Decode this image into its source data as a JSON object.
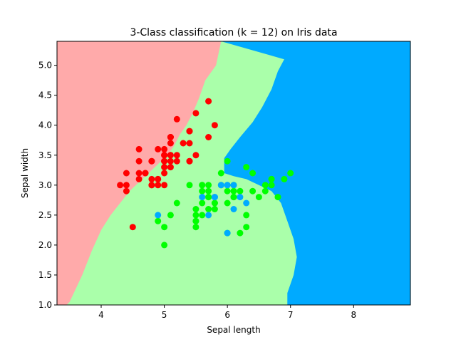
{
  "chart_data": {
    "type": "scatter",
    "title": "3-Class classification (k = 12) on Iris data",
    "xlabel": "Sepal length",
    "ylabel": "Sepal width",
    "xlim": [
      3.3,
      8.9
    ],
    "ylim": [
      1.0,
      5.4
    ],
    "xticks": [
      "4",
      "5",
      "6",
      "7",
      "8"
    ],
    "yticks": [
      "1.0",
      "1.5",
      "2.0",
      "2.5",
      "3.0",
      "3.5",
      "4.0",
      "4.5",
      "5.0"
    ],
    "grid": false,
    "colors": {
      "class_0_region": "#ffaaaa",
      "class_1_region": "#aaffaa",
      "class_2_region": "#00aaff",
      "class_0_point": "#ff0000",
      "class_1_point": "#00ff00",
      "class_2_point": "#00aaff"
    },
    "decision_regions": [
      {
        "class": 0,
        "points": [
          [
            3.3,
            5.4
          ],
          [
            5.9,
            5.4
          ],
          [
            5.82,
            5.0
          ],
          [
            5.65,
            4.75
          ],
          [
            5.55,
            4.45
          ],
          [
            5.45,
            4.2
          ],
          [
            5.35,
            4.0
          ],
          [
            5.25,
            3.85
          ],
          [
            5.15,
            3.65
          ],
          [
            5.05,
            3.5
          ],
          [
            4.95,
            3.4
          ],
          [
            4.85,
            3.3
          ],
          [
            4.75,
            3.2
          ],
          [
            4.6,
            3.05
          ],
          [
            4.45,
            2.9
          ],
          [
            4.3,
            2.7
          ],
          [
            4.15,
            2.5
          ],
          [
            4.0,
            2.25
          ],
          [
            3.85,
            1.9
          ],
          [
            3.7,
            1.5
          ],
          [
            3.5,
            1.05
          ],
          [
            3.45,
            1.0
          ],
          [
            3.3,
            1.0
          ]
        ]
      },
      {
        "class": 2,
        "points": [
          [
            5.9,
            5.4
          ],
          [
            8.9,
            5.4
          ],
          [
            8.9,
            1.0
          ],
          [
            6.95,
            1.0
          ],
          [
            6.95,
            1.2
          ],
          [
            7.05,
            1.5
          ],
          [
            7.1,
            1.8
          ],
          [
            7.05,
            2.1
          ],
          [
            6.95,
            2.4
          ],
          [
            6.85,
            2.7
          ],
          [
            6.7,
            2.9
          ],
          [
            6.5,
            3.0
          ],
          [
            6.3,
            3.1
          ],
          [
            6.1,
            3.15
          ],
          [
            5.95,
            3.2
          ],
          [
            5.95,
            3.45
          ],
          [
            6.05,
            3.6
          ],
          [
            6.2,
            3.8
          ],
          [
            6.4,
            4.05
          ],
          [
            6.55,
            4.3
          ],
          [
            6.7,
            4.6
          ],
          [
            6.8,
            4.9
          ],
          [
            6.9,
            5.1
          ]
        ]
      }
    ],
    "series": [
      {
        "class": 0,
        "points": [
          [
            5.1,
            3.5
          ],
          [
            4.9,
            3.0
          ],
          [
            4.7,
            3.2
          ],
          [
            4.6,
            3.1
          ],
          [
            5.0,
            3.6
          ],
          [
            5.4,
            3.9
          ],
          [
            4.6,
            3.4
          ],
          [
            5.0,
            3.4
          ],
          [
            4.4,
            2.9
          ],
          [
            4.9,
            3.1
          ],
          [
            5.4,
            3.7
          ],
          [
            4.8,
            3.4
          ],
          [
            4.8,
            3.0
          ],
          [
            4.3,
            3.0
          ],
          [
            5.8,
            4.0
          ],
          [
            5.7,
            4.4
          ],
          [
            5.4,
            3.9
          ],
          [
            5.1,
            3.5
          ],
          [
            5.7,
            3.8
          ],
          [
            5.1,
            3.8
          ],
          [
            5.4,
            3.4
          ],
          [
            5.1,
            3.7
          ],
          [
            4.6,
            3.6
          ],
          [
            5.1,
            3.3
          ],
          [
            4.8,
            3.4
          ],
          [
            5.0,
            3.0
          ],
          [
            5.0,
            3.4
          ],
          [
            5.2,
            3.5
          ],
          [
            5.2,
            3.4
          ],
          [
            4.7,
            3.2
          ],
          [
            4.8,
            3.1
          ],
          [
            5.4,
            3.4
          ],
          [
            5.2,
            4.1
          ],
          [
            5.5,
            4.2
          ],
          [
            4.9,
            3.1
          ],
          [
            5.0,
            3.2
          ],
          [
            5.5,
            3.5
          ],
          [
            4.9,
            3.6
          ],
          [
            4.4,
            3.0
          ],
          [
            5.1,
            3.4
          ],
          [
            5.0,
            3.5
          ],
          [
            4.5,
            2.3
          ],
          [
            4.4,
            3.2
          ],
          [
            5.0,
            3.5
          ],
          [
            5.1,
            3.8
          ],
          [
            4.8,
            3.0
          ],
          [
            5.1,
            3.8
          ],
          [
            4.6,
            3.2
          ],
          [
            5.3,
            3.7
          ],
          [
            5.0,
            3.3
          ]
        ]
      },
      {
        "class": 1,
        "points": [
          [
            7.0,
            3.2
          ],
          [
            6.4,
            3.2
          ],
          [
            6.9,
            3.1
          ],
          [
            5.5,
            2.3
          ],
          [
            6.5,
            2.8
          ],
          [
            5.7,
            2.8
          ],
          [
            6.3,
            3.3
          ],
          [
            4.9,
            2.4
          ],
          [
            6.6,
            2.9
          ],
          [
            5.2,
            2.7
          ],
          [
            5.0,
            2.0
          ],
          [
            5.9,
            3.0
          ],
          [
            6.0,
            2.2
          ],
          [
            6.1,
            2.9
          ],
          [
            5.6,
            2.9
          ],
          [
            6.7,
            3.1
          ],
          [
            5.6,
            3.0
          ],
          [
            5.8,
            2.7
          ],
          [
            6.2,
            2.2
          ],
          [
            5.6,
            2.5
          ],
          [
            5.9,
            3.2
          ],
          [
            6.1,
            2.8
          ],
          [
            6.3,
            2.5
          ],
          [
            6.1,
            2.8
          ],
          [
            6.4,
            2.9
          ],
          [
            6.6,
            3.0
          ],
          [
            6.8,
            2.8
          ],
          [
            6.7,
            3.0
          ],
          [
            6.0,
            2.9
          ],
          [
            5.7,
            2.6
          ],
          [
            5.5,
            2.4
          ],
          [
            5.5,
            2.4
          ],
          [
            5.8,
            2.7
          ],
          [
            6.0,
            2.7
          ],
          [
            5.4,
            3.0
          ],
          [
            6.0,
            3.4
          ],
          [
            6.7,
            3.1
          ],
          [
            6.3,
            2.3
          ],
          [
            5.6,
            3.0
          ],
          [
            5.5,
            2.5
          ],
          [
            5.5,
            2.6
          ],
          [
            6.1,
            3.0
          ],
          [
            5.8,
            2.6
          ],
          [
            5.0,
            2.3
          ],
          [
            5.6,
            2.7
          ],
          [
            5.7,
            3.0
          ],
          [
            5.7,
            2.9
          ],
          [
            6.2,
            2.9
          ],
          [
            5.1,
            2.5
          ],
          [
            5.7,
            2.8
          ]
        ]
      },
      {
        "class": 2,
        "points": [
          [
            5.8,
            2.8
          ],
          [
            4.9,
            2.5
          ],
          [
            5.7,
            2.5
          ],
          [
            5.8,
            2.8
          ],
          [
            6.0,
            2.2
          ],
          [
            5.6,
            2.8
          ],
          [
            6.1,
            2.6
          ],
          [
            6.1,
            3.0
          ],
          [
            6.0,
            3.0
          ],
          [
            5.9,
            3.0
          ],
          [
            6.2,
            2.8
          ],
          [
            6.3,
            2.7
          ],
          [
            6.0,
            3.0
          ]
        ]
      }
    ]
  }
}
